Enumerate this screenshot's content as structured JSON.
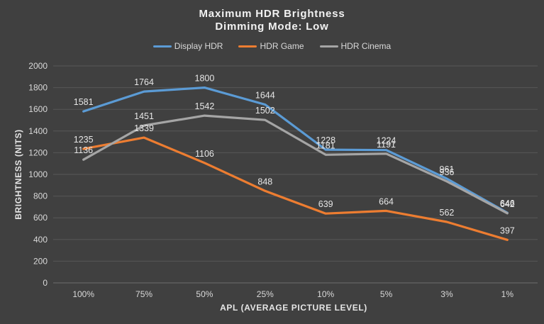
{
  "chart_data": {
    "type": "line",
    "title_line1": "Maximum  HDR Brightness",
    "title_line2": "Dimming  Mode: Low",
    "xlabel": "APL (AVERAGE PICTURE LEVEL)",
    "ylabel": "BRIGHTNESS (NITS)",
    "ylim": [
      0,
      2000
    ],
    "ytick_step": 200,
    "yticks": [
      "0",
      "200",
      "400",
      "600",
      "800",
      "1000",
      "1200",
      "1400",
      "1600",
      "1800",
      "2000"
    ],
    "categories": [
      "100%",
      "75%",
      "50%",
      "25%",
      "10%",
      "5%",
      "3%",
      "1%"
    ],
    "grid": true,
    "legend_position": "top-center",
    "series": [
      {
        "name": "Display HDR",
        "color": "#5b9bd5",
        "values": [
          1581,
          1764,
          1800,
          1644,
          1228,
          1224,
          961,
          646
        ],
        "labels": [
          "1581",
          "1764",
          "1800",
          "1644",
          "1228",
          "1224",
          "961",
          "646"
        ]
      },
      {
        "name": "HDR Game",
        "color": "#ed7d31",
        "values": [
          1235,
          1339,
          1106,
          848,
          639,
          664,
          562,
          397
        ],
        "labels": [
          "1235",
          "1339",
          "1106",
          "848",
          "639",
          "664",
          "562",
          "397"
        ]
      },
      {
        "name": "HDR Cinema",
        "color": "#a5a5a5",
        "values": [
          1136,
          1451,
          1542,
          1502,
          1181,
          1191,
          936,
          642
        ],
        "labels": [
          "1136",
          "1451",
          "1542",
          "1502",
          "1181",
          "1191",
          "936",
          "642"
        ]
      }
    ]
  }
}
